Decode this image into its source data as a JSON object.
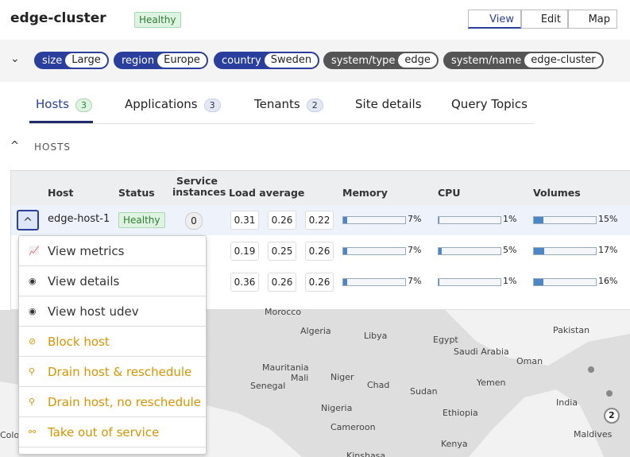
{
  "header": {
    "title": "edge-cluster",
    "status": "Healthy",
    "buttons": [
      "View",
      "Edit",
      "Map"
    ]
  },
  "labels": [
    {
      "key": "size",
      "value": "Large",
      "kind": "user"
    },
    {
      "key": "region",
      "value": "Europe",
      "kind": "user"
    },
    {
      "key": "country",
      "value": "Sweden",
      "kind": "user"
    },
    {
      "key": "system/type",
      "value": "edge",
      "kind": "system"
    },
    {
      "key": "system/name",
      "value": "edge-cluster",
      "kind": "system"
    }
  ],
  "tabs": [
    {
      "label": "Hosts",
      "count": "3"
    },
    {
      "label": "Applications",
      "count": "3"
    },
    {
      "label": "Tenants",
      "count": "2"
    },
    {
      "label": "Site details"
    },
    {
      "label": "Query Topics"
    }
  ],
  "section": "HOSTS",
  "table": {
    "columns": [
      "Host",
      "Status",
      "Service instances",
      "Load average",
      "Memory",
      "CPU",
      "Volumes"
    ],
    "rows": [
      {
        "host": "edge-host-1",
        "status": "Healthy",
        "instances": "0",
        "load": [
          "0.31",
          "0.26",
          "0.22"
        ],
        "memory": {
          "value": 7,
          "label": "7%"
        },
        "cpu": {
          "value": 1,
          "label": "1%"
        },
        "volumes": {
          "value": 15,
          "label": "15%"
        }
      },
      {
        "load": [
          "0.19",
          "0.25",
          "0.26"
        ],
        "memory": {
          "value": 7,
          "label": "7%"
        },
        "cpu": {
          "value": 5,
          "label": "5%"
        },
        "volumes": {
          "value": 17,
          "label": "17%"
        }
      },
      {
        "load": [
          "0.36",
          "0.26",
          "0.26"
        ],
        "memory": {
          "value": 7,
          "label": "7%"
        },
        "cpu": {
          "value": 1,
          "label": "1%"
        },
        "volumes": {
          "value": 16,
          "label": "16%"
        }
      }
    ]
  },
  "menu": [
    {
      "label": "View metrics",
      "kind": "normal"
    },
    {
      "label": "View details",
      "kind": "normal"
    },
    {
      "label": "View host udev",
      "kind": "normal"
    },
    {
      "label": "Block host",
      "kind": "warn"
    },
    {
      "label": "Drain host & reschedule",
      "kind": "warn"
    },
    {
      "label": "Drain host, no reschedule",
      "kind": "warn"
    },
    {
      "label": "Take out of service",
      "kind": "warn"
    }
  ],
  "map": {
    "places": [
      "Morocco",
      "Algeria",
      "Libya",
      "Egypt",
      "Saudi Arabia",
      "Oman",
      "Pakistan",
      "India",
      "Mauritania",
      "Mali",
      "Niger",
      "Chad",
      "Sudan",
      "Yemen",
      "Senegal",
      "Nigeria",
      "Ethiopia",
      "Cameroon",
      "Kenya",
      "Maldives",
      "Kinshasa",
      "Colom"
    ],
    "cluster": "2"
  }
}
